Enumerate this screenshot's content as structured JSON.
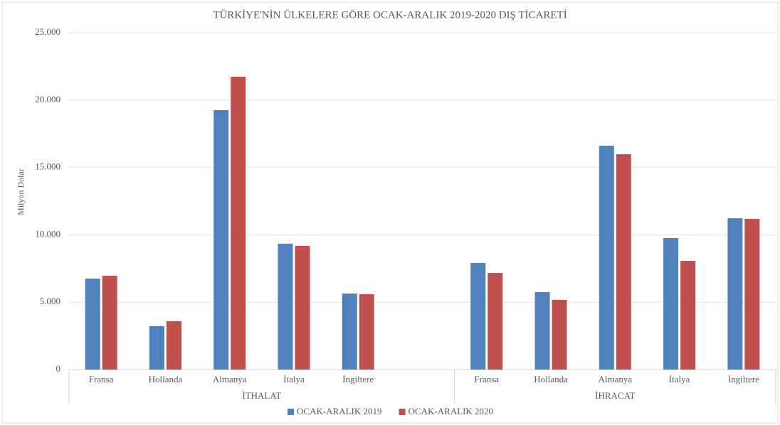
{
  "chart_data": {
    "type": "bar",
    "title": "TÜRKİYE'NİN ÜLKELERE GÖRE OCAK-ARALIK 2019-2020 DIŞ TİCARETİ",
    "y_label": "Milyon Dolar",
    "groups": [
      {
        "name": "İTHALAT",
        "categories": [
          "Fransa",
          "Hollanda",
          "Almanya",
          "İtalya",
          "İngiltere",
          null
        ]
      },
      {
        "name": "İHRACAT",
        "categories": [
          "Fransa",
          "Hollanda",
          "Almanya",
          "İtalya",
          "İngiltere"
        ]
      }
    ],
    "series": [
      {
        "name": "OCAK-ARALIK 2019",
        "color": "#4f81bd",
        "values": [
          6750,
          3220,
          19250,
          9340,
          5640,
          null,
          7910,
          5750,
          16610,
          9760,
          11230
        ]
      },
      {
        "name": "OCAK-ARALIK 2020",
        "color": "#c0504d",
        "values": [
          6960,
          3590,
          21730,
          9180,
          5590,
          null,
          7170,
          5170,
          15980,
          8070,
          11180
        ]
      }
    ],
    "ylim": [
      0,
      25000
    ],
    "yticks": [
      0,
      {
        "value": 5000,
        "label": "5.000"
      },
      {
        "value": 10000,
        "label": "10.000"
      },
      {
        "value": 15000,
        "label": "15.000"
      },
      {
        "value": 20000,
        "label": "20.000"
      },
      {
        "value": 25000,
        "label": "25.000"
      }
    ],
    "grid": true,
    "legend": "bottom"
  }
}
